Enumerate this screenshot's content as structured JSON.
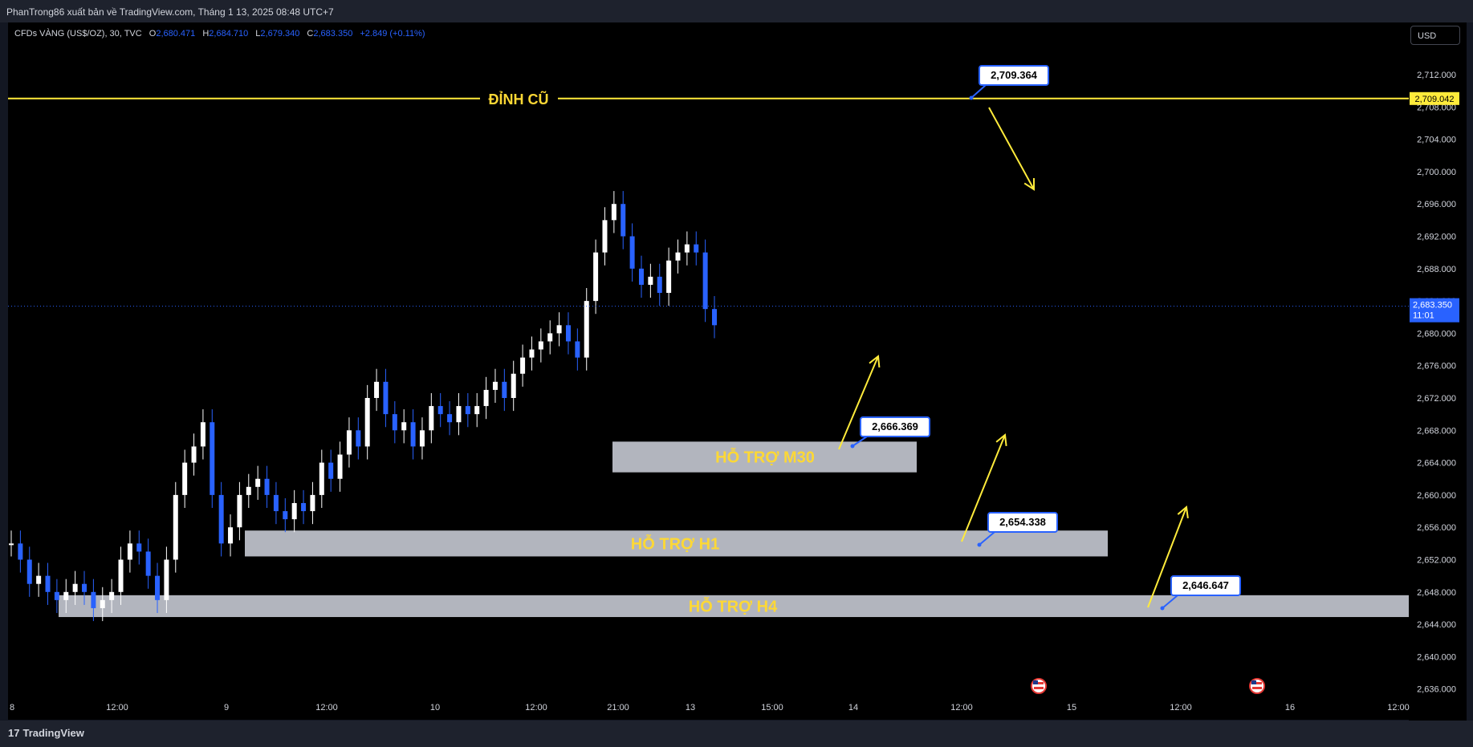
{
  "header": {
    "publish_text": "PhanTrong86 xuất bản về TradingView.com, Tháng 1 13, 2025 08:48 UTC+7"
  },
  "legend": {
    "symbol": "CFDs VÀNG (US$/OZ), 30, TVC",
    "o_label": "O",
    "o_value": "2,680.471",
    "h_label": "H",
    "h_value": "2,684.710",
    "l_label": "L",
    "l_value": "2,679.340",
    "c_label": "C",
    "c_value": "2,683.350",
    "change": "+2.849 (+0.11%)"
  },
  "currency": "USD",
  "footer": {
    "brand": "TradingView"
  },
  "colors": {
    "background": "#000000",
    "up": "#ffffff",
    "down": "#2962ff",
    "line": "#ffeb3b",
    "zone": "#b2b5be",
    "label_text": "#fdd835",
    "price_tag": "#2962ff"
  },
  "chart_data": {
    "type": "candlestick",
    "title": "CFDs VÀNG (US$/OZ), 30, TVC",
    "y_axis_ticks": [
      "2,712.000",
      "2,708.000",
      "2,704.000",
      "2,700.000",
      "2,696.000",
      "2,692.000",
      "2,688.000",
      "2,684.000",
      "2,680.000",
      "2,676.000",
      "2,672.000",
      "2,668.000",
      "2,664.000",
      "2,660.000",
      "2,656.000",
      "2,652.000",
      "2,648.000",
      "2,644.000",
      "2,640.000",
      "2,636.000"
    ],
    "ylim": [
      2635,
      2715
    ],
    "x_axis_ticks": [
      "8",
      "12:00",
      "9",
      "12:00",
      "10",
      "12:00",
      "21:00",
      "13",
      "15:00",
      "14",
      "12:00",
      "15",
      "12:00",
      "16",
      "12:00"
    ],
    "last_price": "2,683.350",
    "countdown": "11:01",
    "level_tag": "2,709.042",
    "horizontal_line": {
      "label": "ĐỈNH CŨ",
      "price": 2709.042
    },
    "zones": [
      {
        "label": "HỖ TRỢ M30",
        "top": 2666.6,
        "bottom": 2662.8
      },
      {
        "label": "HỖ TRỢ H1",
        "top": 2655.6,
        "bottom": 2652.4
      },
      {
        "label": "HỖ TRỢ H4",
        "top": 2647.6,
        "bottom": 2644.9
      }
    ],
    "callouts": [
      "2,709.364",
      "2,666.369",
      "2,654.338",
      "2,646.647"
    ],
    "close_path": [
      2654,
      2652,
      2649,
      2650,
      2648,
      2647,
      2648,
      2649,
      2648,
      2646,
      2647,
      2648,
      2652,
      2654,
      2653,
      2650,
      2647,
      2652,
      2660,
      2664,
      2666,
      2669,
      2660,
      2654,
      2656,
      2660,
      2661,
      2662,
      2660,
      2658,
      2657,
      2659,
      2658,
      2660,
      2664,
      2662,
      2665,
      2668,
      2666,
      2672,
      2674,
      2670,
      2668,
      2669,
      2666,
      2668,
      2671,
      2670,
      2669,
      2671,
      2670,
      2671,
      2673,
      2674,
      2672,
      2675,
      2677,
      2678,
      2679,
      2680,
      2681,
      2679,
      2677,
      2684,
      2690,
      2694,
      2696,
      2692,
      2688,
      2686,
      2687,
      2685,
      2689,
      2690,
      2691,
      2690,
      2683,
      2681
    ]
  }
}
